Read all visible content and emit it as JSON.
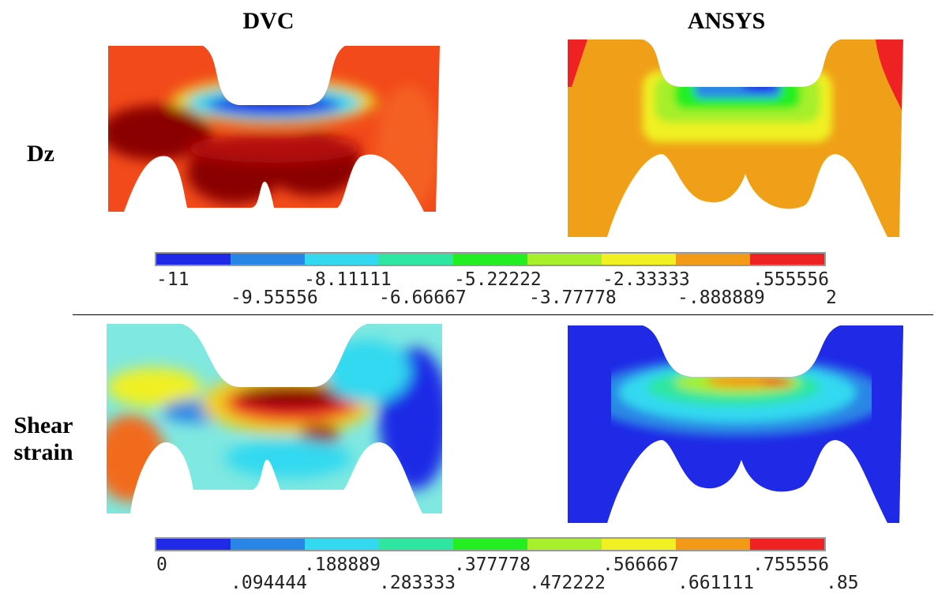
{
  "columns": {
    "dvc": "DVC",
    "ansys": "ANSYS"
  },
  "rows": {
    "dz": "Dz",
    "shear_line1": "Shear",
    "shear_line2": "strain"
  },
  "palette": [
    "#1f29e6",
    "#2a86e6",
    "#33d9f0",
    "#2ee6a0",
    "#22ee22",
    "#a6ef2a",
    "#f0f022",
    "#f29a18",
    "#ee2222"
  ],
  "colorbar_dz": {
    "top_labels": [
      "-11",
      "-8.11111",
      "-5.22222",
      "-2.33333",
      ".555556"
    ],
    "bottom_labels": [
      "-9.55556",
      "-6.66667",
      "-3.77778",
      "-.888889",
      "2"
    ]
  },
  "colorbar_shear": {
    "top_labels": [
      "0",
      ".188889",
      ".377778",
      ".566667",
      ".755556"
    ],
    "bottom_labels": [
      ".094444",
      ".283333",
      ".472222",
      ".661111",
      ".85"
    ]
  }
}
